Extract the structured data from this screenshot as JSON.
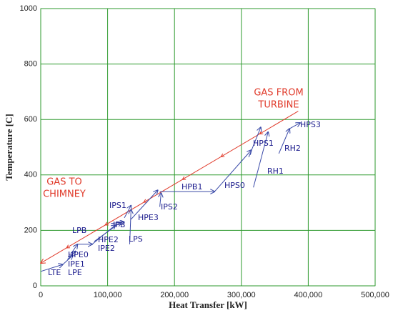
{
  "chart_data": {
    "type": "line",
    "xlabel": "Heat Transfer [kW]",
    "ylabel": "Temperature [C]",
    "xlim": [
      0,
      500000
    ],
    "ylim": [
      0,
      1000
    ],
    "xticks": [
      0,
      {
        "value": 100000,
        "label": "100,000"
      },
      {
        "value": 200000,
        "label": "200,000"
      },
      {
        "value": 300000,
        "label": "300,000"
      },
      {
        "value": 400000,
        "label": "400,000"
      },
      {
        "value": 500000,
        "label": "500,000"
      }
    ],
    "yticks": [
      0,
      200,
      400,
      600,
      800,
      1000
    ],
    "grid": true,
    "grid_color": "#2e9a2e",
    "gas": {
      "color": "#e03a2a",
      "x": [
        385000,
        0
      ],
      "values": [
        630,
        82
      ]
    },
    "annotations": [
      {
        "text": [
          "GAS FROM",
          "TURBINE"
        ],
        "color": "#e03a2a"
      },
      {
        "text": [
          "GAS TO",
          "CHIMNEY"
        ],
        "color": "#e03a2a"
      }
    ],
    "series_color": "#3a4aa8",
    "series": [
      {
        "name": "LTE",
        "x": [
          0,
          33000
        ],
        "values": [
          52,
          77
        ]
      },
      {
        "name": "LPE",
        "x": [
          33000,
          48000
        ],
        "values": [
          77,
          110
        ]
      },
      {
        "name": "IPE1",
        "x": [
          40000,
          52000
        ],
        "values": [
          95,
          125
        ]
      },
      {
        "name": "HPE0",
        "x": [
          45000,
          55000
        ],
        "values": [
          115,
          150
        ]
      },
      {
        "name": "LPB",
        "x": [
          55000,
          77000
        ],
        "values": [
          150,
          150
        ]
      },
      {
        "name": "IPE2",
        "x": [
          77000,
          112000
        ],
        "values": [
          150,
          220
        ]
      },
      {
        "name": "HPE2",
        "x": [
          80000,
          120000
        ],
        "values": [
          160,
          230
        ]
      },
      {
        "name": "IPB",
        "x": [
          105000,
          125000
        ],
        "values": [
          225,
          230
        ]
      },
      {
        "name": "LPS",
        "x": [
          133000,
          135000
        ],
        "values": [
          150,
          275
        ]
      },
      {
        "name": "IPS1",
        "x": [
          125000,
          135000
        ],
        "values": [
          245,
          290
        ]
      },
      {
        "name": "HPE3",
        "x": [
          135000,
          175000
        ],
        "values": [
          240,
          345
        ]
      },
      {
        "name": "IPS2",
        "x": [
          178000,
          180000
        ],
        "values": [
          285,
          335
        ]
      },
      {
        "name": "HPB1",
        "x": [
          178000,
          260000
        ],
        "values": [
          340,
          340
        ]
      },
      {
        "name": "HPS0",
        "x": [
          260000,
          315000
        ],
        "values": [
          340,
          490
        ]
      },
      {
        "name": "HPS1",
        "x": [
          311000,
          329000
        ],
        "values": [
          464,
          572
        ]
      },
      {
        "name": "RH1",
        "x": [
          318000,
          340000
        ],
        "values": [
          355,
          555
        ]
      },
      {
        "name": "RH2",
        "x": [
          356000,
          372000
        ],
        "values": [
          477,
          567
        ]
      },
      {
        "name": "HPS3",
        "x": [
          372000,
          388000
        ],
        "values": [
          567,
          588
        ]
      }
    ]
  }
}
